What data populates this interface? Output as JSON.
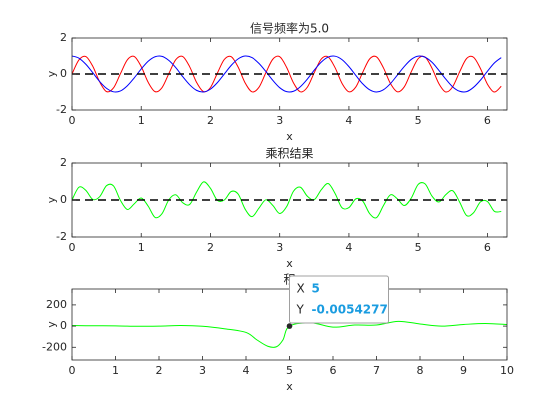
{
  "chart_data": [
    {
      "type": "line",
      "title": "信号频率为5.0",
      "xlabel": "x",
      "ylabel": "y",
      "x": [
        0,
        0.1,
        0.2,
        0.3,
        0.4,
        0.5,
        0.6,
        0.7,
        0.8,
        0.9,
        1,
        1.1,
        1.2,
        1.3,
        1.4,
        1.5,
        1.6,
        1.7,
        1.8,
        1.9,
        2,
        2.1,
        2.2,
        2.3,
        2.4,
        2.5,
        2.6,
        2.7,
        2.8,
        2.9,
        3,
        3.1,
        3.2,
        3.3,
        3.4,
        3.5,
        3.6,
        3.7,
        3.8,
        3.9,
        4,
        4.1,
        4.2,
        4.3,
        4.4,
        4.5,
        4.6,
        4.7,
        4.8,
        4.9,
        5,
        5.1,
        5.2,
        5.3,
        5.4,
        5.5,
        5.6,
        5.7,
        5.8,
        5.9,
        6,
        6.1,
        6.2
      ],
      "series": [
        {
          "color": "#ff0000",
          "values": [
            0,
            0.78,
            0.97,
            0.43,
            -0.44,
            -0.98,
            -0.77,
            0.02,
            0.79,
            0.97,
            0.41,
            -0.46,
            -0.98,
            -0.76,
            0.03,
            0.8,
            0.97,
            0.4,
            -0.47,
            -0.98,
            -0.75,
            0.05,
            0.81,
            0.96,
            0.38,
            -0.49,
            -0.99,
            -0.74,
            0.07,
            0.82,
            0.96,
            0.37,
            -0.5,
            -0.99,
            -0.73,
            0.08,
            0.83,
            0.95,
            0.35,
            -0.52,
            -0.99,
            -0.72,
            0.1,
            0.84,
            0.95,
            0.33,
            -0.53,
            -0.99,
            -0.71,
            0.12,
            0.85,
            0.94,
            0.32,
            -0.54,
            -1.0,
            -0.7,
            0.13,
            0.86,
            0.93,
            0.3,
            -0.56,
            -1.0,
            -0.68
          ]
        },
        {
          "color": "#0000ff",
          "values": [
            1,
            0.88,
            0.54,
            0.07,
            -0.42,
            -0.8,
            -0.99,
            -0.94,
            -0.65,
            -0.21,
            0.28,
            0.71,
            0.96,
            0.98,
            0.75,
            0.35,
            -0.15,
            -0.6,
            -0.91,
            -1.0,
            -0.84,
            -0.48,
            0.0,
            0.48,
            0.84,
            1.0,
            0.91,
            0.59,
            0.14,
            -0.35,
            -0.76,
            -0.98,
            -0.96,
            -0.7,
            -0.28,
            0.22,
            0.66,
            0.94,
            0.99,
            0.8,
            0.41,
            -0.08,
            -0.55,
            -0.88,
            -1.0,
            -0.87,
            -0.53,
            -0.06,
            0.42,
            0.81,
            0.99,
            0.93,
            0.65,
            0.2,
            -0.29,
            -0.72,
            -0.96,
            -0.98,
            -0.74,
            -0.34,
            0.15,
            0.61,
            0.91
          ]
        }
      ],
      "hline": 0,
      "xlim": [
        0,
        6.2832
      ],
      "xticks": [
        0,
        1,
        2,
        3,
        4,
        5,
        6
      ],
      "ylim": [
        -2,
        2
      ],
      "yticks": [
        -2,
        0,
        2
      ]
    },
    {
      "type": "line",
      "title": "乘积结果",
      "xlabel": "x",
      "ylabel": "y",
      "x": [
        0,
        0.1,
        0.2,
        0.3,
        0.4,
        0.5,
        0.6,
        0.7,
        0.8,
        0.9,
        1,
        1.1,
        1.2,
        1.3,
        1.4,
        1.5,
        1.6,
        1.7,
        1.8,
        1.9,
        2,
        2.1,
        2.2,
        2.3,
        2.4,
        2.5,
        2.6,
        2.7,
        2.8,
        2.9,
        3,
        3.1,
        3.2,
        3.3,
        3.4,
        3.5,
        3.6,
        3.7,
        3.8,
        3.9,
        4,
        4.1,
        4.2,
        4.3,
        4.4,
        4.5,
        4.6,
        4.7,
        4.8,
        4.9,
        5,
        5.1,
        5.2,
        5.3,
        5.4,
        5.5,
        5.6,
        5.7,
        5.8,
        5.9,
        6,
        6.1,
        6.2
      ],
      "series": [
        {
          "color": "#00ff00",
          "values": [
            0,
            0.69,
            0.52,
            0.03,
            0.18,
            0.78,
            0.76,
            -0.02,
            -0.51,
            -0.2,
            0.11,
            -0.33,
            -0.94,
            -0.74,
            0.02,
            0.28,
            -0.15,
            -0.24,
            0.43,
            0.98,
            0.63,
            -0.02,
            0,
            0.46,
            0.32,
            -0.49,
            -0.9,
            -0.44,
            0.01,
            -0.29,
            -0.73,
            -0.36,
            0.48,
            0.69,
            0.2,
            0.02,
            0.55,
            0.89,
            0.35,
            -0.42,
            -0.41,
            0.06,
            -0.06,
            -0.74,
            -0.95,
            -0.29,
            0.28,
            0.06,
            -0.3,
            0.1,
            0.84,
            0.87,
            0.21,
            -0.11,
            0.29,
            0.5,
            -0.12,
            -0.84,
            -0.69,
            -0.1,
            -0.08,
            -0.61,
            -0.62
          ]
        }
      ],
      "hline": 0,
      "xlim": [
        0,
        6.2832
      ],
      "xticks": [
        0,
        1,
        2,
        3,
        4,
        5,
        6
      ],
      "ylim": [
        -2,
        2
      ],
      "yticks": [
        -2,
        0,
        2
      ]
    },
    {
      "type": "line",
      "title": "积",
      "xlabel": "x",
      "ylabel": "y",
      "x": [
        0,
        0.5,
        1,
        1.5,
        2,
        2.5,
        3,
        3.5,
        4,
        4.25,
        4.5,
        4.7,
        4.85,
        5,
        5.5,
        6,
        6.5,
        7,
        7.5,
        8,
        8.5,
        9,
        9.5,
        10
      ],
      "series": [
        {
          "color": "#00ff00",
          "values": [
            5,
            3,
            2,
            -2,
            0,
            5,
            -2,
            -25,
            -60,
            -130,
            -190,
            -195,
            -130,
            -0.0054277,
            30,
            -10,
            10,
            10,
            45,
            20,
            0,
            15,
            25,
            15
          ]
        }
      ],
      "datatip": {
        "x_label": "X",
        "x": 5,
        "y_label": "Y",
        "y": -0.0054277
      },
      "xlim": [
        0,
        10
      ],
      "xticks": [
        0,
        1,
        2,
        3,
        4,
        5,
        6,
        7,
        8,
        9,
        10
      ],
      "ylim": [
        -320,
        350
      ],
      "yticks": [
        -200,
        0,
        200
      ]
    }
  ]
}
